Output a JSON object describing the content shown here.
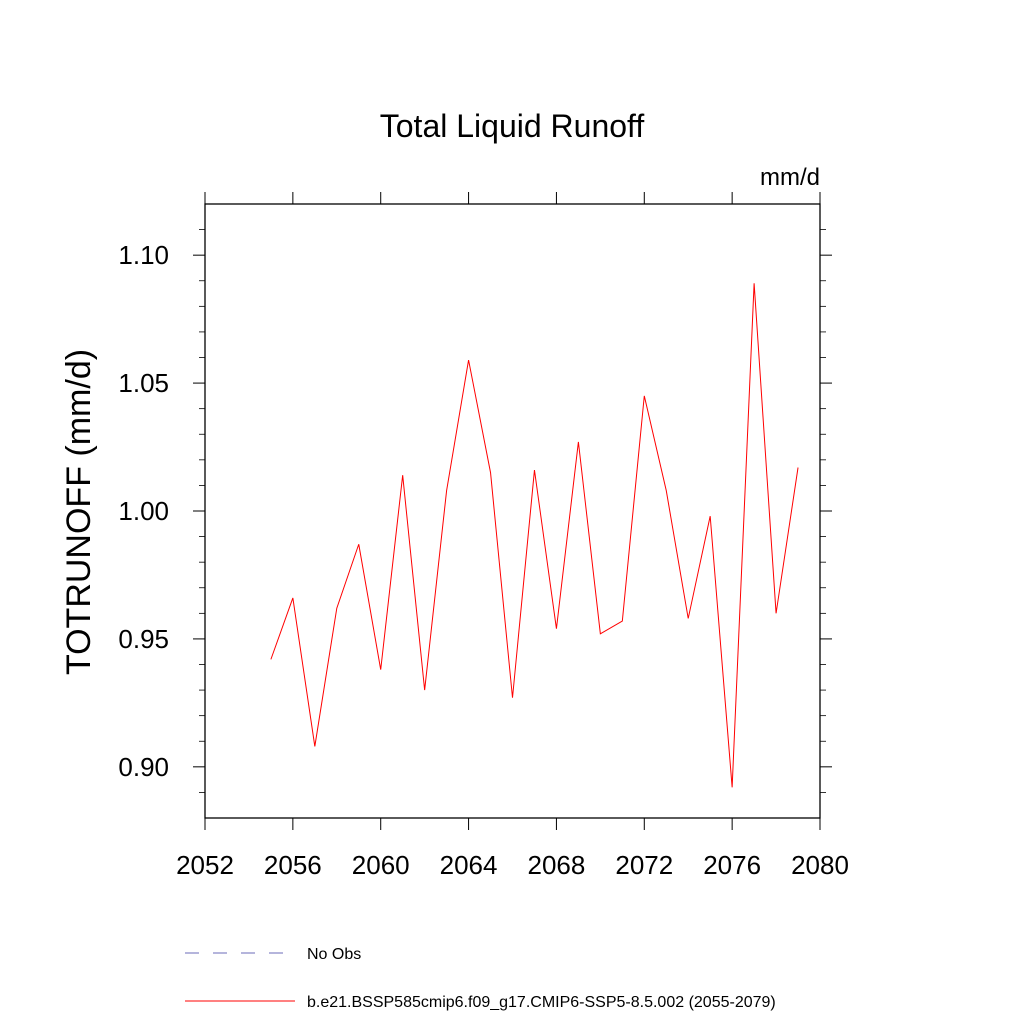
{
  "chart_data": {
    "type": "line",
    "title": "Total Liquid Runoff",
    "units_label": "mm/d",
    "xlabel": "",
    "ylabel": "TOTRUNOFF  (mm/d)",
    "xlim": [
      2052,
      2080
    ],
    "ylim": [
      0.88,
      1.12
    ],
    "x_ticks": [
      2052,
      2056,
      2060,
      2064,
      2068,
      2072,
      2076,
      2080
    ],
    "y_ticks": [
      0.9,
      0.95,
      1.0,
      1.05,
      1.1
    ],
    "x_tick_labels": [
      "2052",
      "2056",
      "2060",
      "2064",
      "2068",
      "2072",
      "2076",
      "2080"
    ],
    "y_tick_labels": [
      "0.90",
      "0.95",
      "1.00",
      "1.05",
      "1.10"
    ],
    "grid": false,
    "legend_position": "bottom",
    "series": [
      {
        "name": "b.e21.BSSP585cmip6.f09_g17.CMIP6-SSP5-8.5.002 (2055-2079)",
        "color": "#ff0000",
        "style": "solid",
        "x": [
          2055,
          2056,
          2057,
          2058,
          2059,
          2060,
          2061,
          2062,
          2063,
          2064,
          2065,
          2066,
          2067,
          2068,
          2069,
          2070,
          2071,
          2072,
          2073,
          2074,
          2075,
          2076,
          2077,
          2078,
          2079
        ],
        "values": [
          0.942,
          0.966,
          0.908,
          0.962,
          0.987,
          0.938,
          1.014,
          0.93,
          1.008,
          1.059,
          1.015,
          0.927,
          1.016,
          0.954,
          1.027,
          0.952,
          0.957,
          1.045,
          1.008,
          0.958,
          0.998,
          0.892,
          1.089,
          0.96,
          1.017
        ]
      }
    ],
    "legend": [
      {
        "label": "No Obs",
        "color": "#6b6bb8",
        "style": "dashed"
      },
      {
        "label": "b.e21.BSSP585cmip6.f09_g17.CMIP6-SSP5-8.5.002 (2055-2079)",
        "color": "#ff0000",
        "style": "solid"
      }
    ]
  }
}
